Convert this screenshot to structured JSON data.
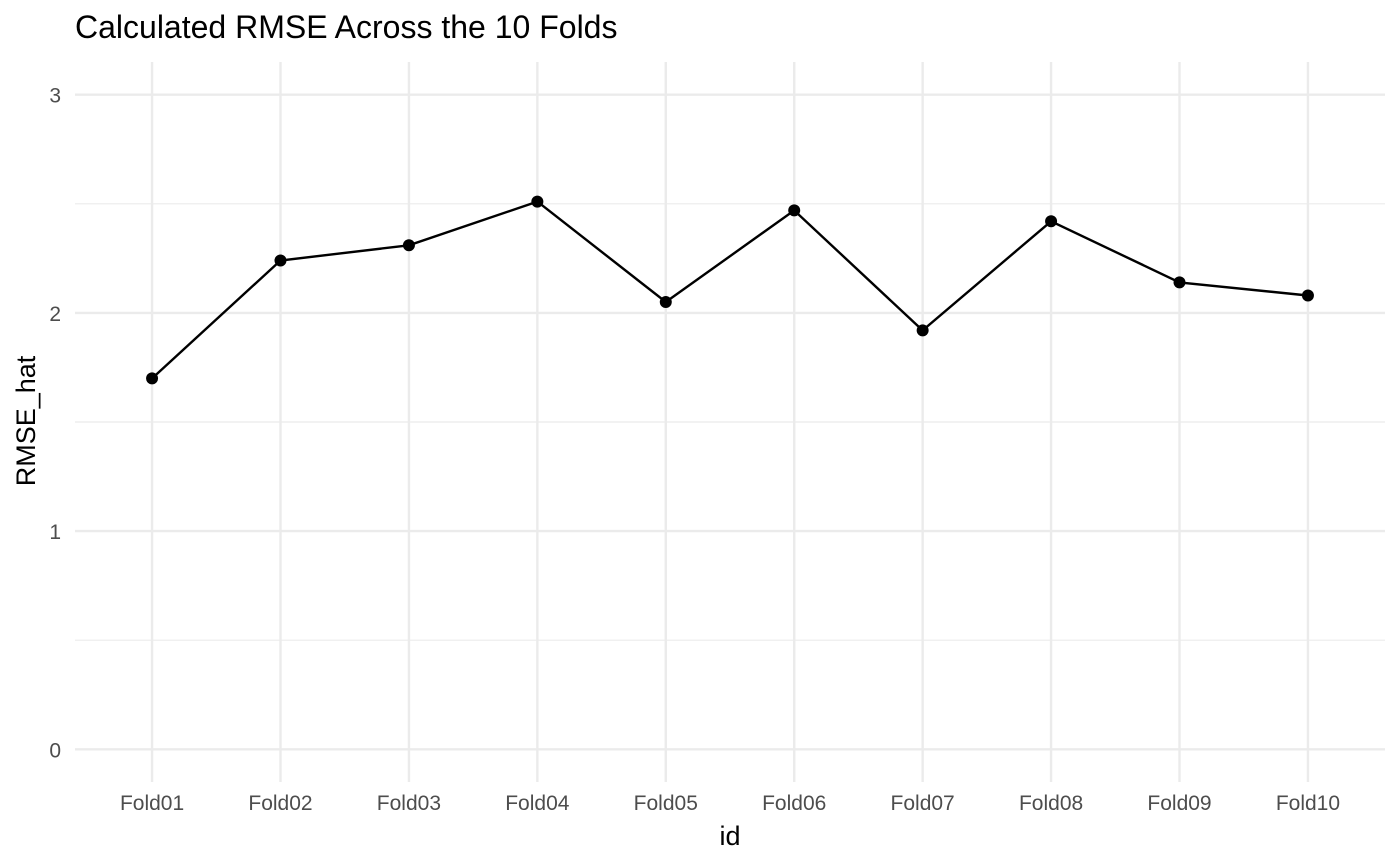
{
  "chart_data": {
    "type": "line",
    "title": "Calculated RMSE Across the 10 Folds",
    "xlabel": "id",
    "ylabel": "RMSE_hat",
    "categories": [
      "Fold01",
      "Fold02",
      "Fold03",
      "Fold04",
      "Fold05",
      "Fold06",
      "Fold07",
      "Fold08",
      "Fold09",
      "Fold10"
    ],
    "values": [
      1.7,
      2.24,
      2.31,
      2.51,
      2.05,
      2.47,
      1.92,
      2.42,
      2.14,
      2.08
    ],
    "ylim": [
      -0.15,
      3.15
    ],
    "yticks": [
      0,
      1,
      2,
      3
    ],
    "yminor": [
      0.5,
      1.5,
      2.5
    ],
    "ytick_labels": [
      "0",
      "1",
      "2",
      "3"
    ],
    "grid": true,
    "legend": "none",
    "colors": {
      "line": "#000000",
      "point": "#000000",
      "grid": "#ebebeb",
      "tick_text": "#4d4d4d",
      "background": "#ffffff"
    }
  }
}
